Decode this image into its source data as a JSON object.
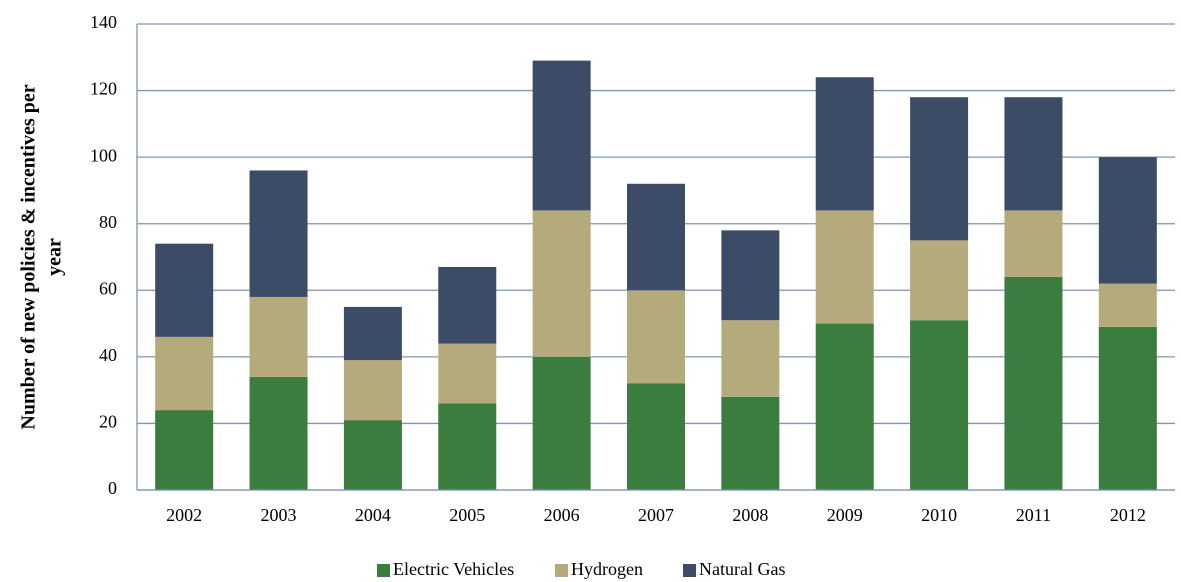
{
  "chart_data": {
    "type": "stacked_bar",
    "y_label": [
      "Number of new policies & incentives per",
      "year"
    ],
    "categories": [
      "2002",
      "2003",
      "2004",
      "2005",
      "2006",
      "2007",
      "2008",
      "2009",
      "2010",
      "2011",
      "2012"
    ],
    "series": [
      {
        "name": "Electric Vehicles",
        "color": "#3b7d3e",
        "values": [
          24,
          34,
          21,
          26,
          40,
          32,
          28,
          50,
          51,
          64,
          49
        ]
      },
      {
        "name": "Hydrogen",
        "color": "#b5aa7b",
        "values": [
          22,
          24,
          18,
          18,
          44,
          28,
          23,
          34,
          24,
          20,
          13
        ]
      },
      {
        "name": "Natural Gas",
        "color": "#3c4c66",
        "values": [
          28,
          38,
          16,
          23,
          45,
          32,
          27,
          40,
          43,
          34,
          38
        ]
      }
    ],
    "ylim": [
      0,
      140
    ],
    "yticks": [
      0,
      20,
      40,
      60,
      80,
      100,
      120,
      140
    ],
    "grid": true,
    "legend": "bottom"
  }
}
